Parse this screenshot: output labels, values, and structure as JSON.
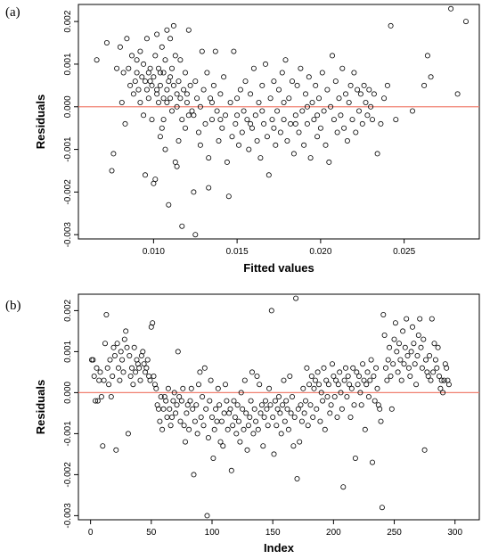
{
  "colors": {
    "reference_line": "#f08070",
    "point_stroke": "#000000"
  },
  "chart_data": [
    {
      "type": "scatter",
      "panel_label": "(a)",
      "xlabel": "Fitted values",
      "ylabel": "Residuals",
      "xlim": [
        0.0055,
        0.0295
      ],
      "ylim": [
        -0.0031,
        0.0024
      ],
      "xticks": [
        0.01,
        0.015,
        0.02,
        0.025
      ],
      "xtick_labels": [
        "0.010",
        "0.015",
        "0.020",
        "0.025"
      ],
      "yticks": [
        -0.003,
        -0.002,
        -0.001,
        0.0,
        0.001,
        0.002
      ],
      "ytick_labels": [
        "-0.003",
        "-0.002",
        "-0.001",
        "0.000",
        "0.001",
        "0.002"
      ],
      "hline": 0,
      "grid": false,
      "points": [
        [
          0.0066,
          0.0011
        ],
        [
          0.0072,
          0.0015
        ],
        [
          0.0075,
          -0.0015
        ],
        [
          0.0076,
          -0.0011
        ],
        [
          0.0078,
          0.0009
        ],
        [
          0.008,
          0.0014
        ],
        [
          0.0081,
          0.0001
        ],
        [
          0.0082,
          0.0008
        ],
        [
          0.0083,
          -0.0004
        ],
        [
          0.0084,
          0.0016
        ],
        [
          0.0085,
          0.0009
        ],
        [
          0.0086,
          0.0005
        ],
        [
          0.0087,
          0.0012
        ],
        [
          0.0088,
          0.0003
        ],
        [
          0.0089,
          0.0006
        ],
        [
          0.009,
          0.0011
        ],
        [
          0.009,
          0.0008
        ],
        [
          0.0091,
          0.0004
        ],
        [
          0.0092,
          0.0013
        ],
        [
          0.0092,
          0.0001
        ],
        [
          0.0093,
          0.0007
        ],
        [
          0.0094,
          -0.0002
        ],
        [
          0.0094,
          0.001
        ],
        [
          0.0095,
          0.0006
        ],
        [
          0.0095,
          -0.0016
        ],
        [
          0.0096,
          0.0016
        ],
        [
          0.0096,
          0.0004
        ],
        [
          0.0097,
          0.0008
        ],
        [
          0.0097,
          0.0002
        ],
        [
          0.0098,
          0.0006
        ],
        [
          0.0098,
          0.0009
        ],
        [
          0.0099,
          -0.0003
        ],
        [
          0.0099,
          0.0005
        ],
        [
          0.01,
          -0.0018
        ],
        [
          0.01,
          0.0007
        ],
        [
          0.0101,
          0.0012
        ],
        [
          0.0101,
          -0.0017
        ],
        [
          0.0102,
          0.0003
        ],
        [
          0.0102,
          0.0017
        ],
        [
          0.0103,
          0.0001
        ],
        [
          0.0103,
          0.0009
        ],
        [
          0.0104,
          -0.0007
        ],
        [
          0.0104,
          0.0005
        ],
        [
          0.0105,
          0.0014
        ],
        [
          0.0105,
          -0.0005
        ],
        [
          0.0106,
          0.0008
        ],
        [
          0.0106,
          0.0002
        ],
        [
          0.0107,
          0.0011
        ],
        [
          0.0107,
          -0.001
        ],
        [
          0.0108,
          0.0018
        ],
        [
          0.0108,
          0.0004
        ],
        [
          0.0109,
          -0.0023
        ],
        [
          0.0109,
          0.0006
        ],
        [
          0.011,
          0.0002
        ],
        [
          0.011,
          0.0016
        ],
        [
          0.0111,
          -0.0001
        ],
        [
          0.0111,
          0.0009
        ],
        [
          0.0112,
          0.0019
        ],
        [
          0.0112,
          0.0005
        ],
        [
          0.0113,
          -0.0013
        ],
        [
          0.0113,
          0.0012
        ],
        [
          0.0114,
          -0.0014
        ],
        [
          0.0114,
          0.0003
        ],
        [
          0.0115,
          0.0006
        ],
        [
          0.0115,
          -0.0008
        ],
        [
          0.0116,
          0.0011
        ],
        [
          0.0117,
          -0.0003
        ],
        [
          0.0117,
          -0.0028
        ],
        [
          0.0118,
          0.0004
        ],
        [
          0.0119,
          -0.0005
        ],
        [
          0.0119,
          0.0008
        ],
        [
          0.012,
          0.0001
        ],
        [
          0.0121,
          -0.0002
        ],
        [
          0.0121,
          0.0018
        ],
        [
          0.0122,
          0.0005
        ],
        [
          0.0123,
          -0.0001
        ],
        [
          0.0124,
          -0.002
        ],
        [
          0.0125,
          -0.003
        ],
        [
          0.0125,
          0.0006
        ],
        [
          0.0126,
          0.0002
        ],
        [
          0.0127,
          -0.0006
        ],
        [
          0.0128,
          -0.0009
        ],
        [
          0.0129,
          0.0013
        ],
        [
          0.013,
          0.0004
        ],
        [
          0.0131,
          -0.0004
        ],
        [
          0.0132,
          0.0008
        ],
        [
          0.0133,
          -0.0019
        ],
        [
          0.0133,
          -0.0012
        ],
        [
          0.0134,
          0.0002
        ],
        [
          0.0135,
          -0.0003
        ],
        [
          0.0136,
          0.0005
        ],
        [
          0.0137,
          0.0013
        ],
        [
          0.0138,
          -0.0001
        ],
        [
          0.0139,
          -0.0008
        ],
        [
          0.014,
          0.0003
        ],
        [
          0.0141,
          -0.0005
        ],
        [
          0.0142,
          0.0007
        ],
        [
          0.0143,
          -0.0002
        ],
        [
          0.0144,
          -0.0013
        ],
        [
          0.0145,
          -0.0021
        ],
        [
          0.0146,
          0.0001
        ],
        [
          0.0147,
          -0.0007
        ],
        [
          0.0148,
          0.0013
        ],
        [
          0.0149,
          -0.0004
        ],
        [
          0.015,
          0.0002
        ],
        [
          0.0151,
          -0.0009
        ],
        [
          0.0152,
          0.0004
        ],
        [
          0.0153,
          -0.0006
        ],
        [
          0.0154,
          -0.0001
        ],
        [
          0.0155,
          0.0006
        ],
        [
          0.0156,
          -0.0003
        ],
        [
          0.0157,
          -0.001
        ],
        [
          0.0158,
          0.0003
        ],
        [
          0.0159,
          -0.0005
        ],
        [
          0.016,
          0.0009
        ],
        [
          0.0161,
          -0.0002
        ],
        [
          0.0162,
          -0.0008
        ],
        [
          0.0163,
          0.0001
        ],
        [
          0.0164,
          -0.0012
        ],
        [
          0.0165,
          0.0005
        ],
        [
          0.0166,
          -0.0004
        ],
        [
          0.0167,
          0.001
        ],
        [
          0.0168,
          -0.0007
        ],
        [
          0.0169,
          -0.0016
        ],
        [
          0.017,
          0.0002
        ],
        [
          0.0171,
          -0.0003
        ],
        [
          0.0172,
          0.0006
        ],
        [
          0.0173,
          -0.0009
        ],
        [
          0.0174,
          -0.0001
        ],
        [
          0.0175,
          0.0004
        ],
        [
          0.0176,
          -0.0006
        ],
        [
          0.0177,
          0.0008
        ],
        [
          0.0178,
          -0.0003
        ],
        [
          0.0179,
          0.0011
        ],
        [
          0.018,
          -0.0008
        ],
        [
          0.0181,
          0.0002
        ],
        [
          0.0182,
          -0.0004
        ],
        [
          0.0183,
          0.0006
        ],
        [
          0.0184,
          -0.0011
        ],
        [
          0.0185,
          -0.0002
        ],
        [
          0.0186,
          0.0005
        ],
        [
          0.0187,
          -0.0006
        ],
        [
          0.0188,
          0.0009
        ],
        [
          0.0189,
          -0.0001
        ],
        [
          0.019,
          -0.0009
        ],
        [
          0.0191,
          0.0003
        ],
        [
          0.0192,
          -0.0004
        ],
        [
          0.0193,
          0.0007
        ],
        [
          0.0194,
          -0.0012
        ],
        [
          0.0195,
          0.0001
        ],
        [
          0.0196,
          -0.0003
        ],
        [
          0.0197,
          0.0005
        ],
        [
          0.0198,
          -0.0007
        ],
        [
          0.0199,
          0.0002
        ],
        [
          0.02,
          -0.0005
        ],
        [
          0.0201,
          0.0008
        ],
        [
          0.0202,
          -0.0001
        ],
        [
          0.0203,
          -0.0009
        ],
        [
          0.0204,
          0.0004
        ],
        [
          0.0205,
          -0.0013
        ],
        [
          0.0206,
          0.0
        ],
        [
          0.0207,
          0.0012
        ],
        [
          0.0208,
          -0.0003
        ],
        [
          0.0209,
          0.0006
        ],
        [
          0.021,
          -0.0006
        ],
        [
          0.0211,
          0.0002
        ],
        [
          0.0212,
          -0.0002
        ],
        [
          0.0213,
          0.0009
        ],
        [
          0.0214,
          -0.0005
        ],
        [
          0.0215,
          0.0003
        ],
        [
          0.0216,
          -0.0008
        ],
        [
          0.0217,
          0.0001
        ],
        [
          0.0218,
          0.0005
        ],
        [
          0.0219,
          -0.0003
        ],
        [
          0.022,
          0.0008
        ],
        [
          0.0221,
          -0.0006
        ],
        [
          0.0222,
          0.0004
        ],
        [
          0.0223,
          -0.0001
        ],
        [
          0.0224,
          0.0003
        ],
        [
          0.0225,
          -0.0004
        ],
        [
          0.0226,
          0.0005
        ],
        [
          0.0227,
          0.0001
        ],
        [
          0.0228,
          -0.0002
        ],
        [
          0.0229,
          0.0004
        ],
        [
          0.023,
          0.0
        ],
        [
          0.0231,
          -0.0003
        ],
        [
          0.0232,
          0.0003
        ],
        [
          0.0234,
          -0.0011
        ],
        [
          0.0236,
          -0.0004
        ],
        [
          0.0238,
          0.0002
        ],
        [
          0.024,
          0.0005
        ],
        [
          0.0242,
          0.0019
        ],
        [
          0.0245,
          -0.0003
        ],
        [
          0.0255,
          -0.0001
        ],
        [
          0.0262,
          0.0005
        ],
        [
          0.0264,
          0.0012
        ],
        [
          0.0266,
          0.0007
        ],
        [
          0.0278,
          0.0023
        ],
        [
          0.0282,
          0.0003
        ],
        [
          0.0287,
          0.002
        ],
        [
          0.0102,
          0.0004
        ],
        [
          0.0104,
          0.0008
        ],
        [
          0.0106,
          -0.0003
        ],
        [
          0.0108,
          0.0001
        ],
        [
          0.011,
          0.0007
        ],
        [
          0.0114,
          0.0
        ],
        [
          0.0116,
          0.0002
        ],
        [
          0.012,
          0.0003
        ],
        [
          0.0124,
          -0.0002
        ],
        [
          0.0128,
          0.0
        ],
        [
          0.0135,
          0.0001
        ],
        [
          0.014,
          -0.0003
        ],
        [
          0.015,
          -0.0002
        ],
        [
          0.0158,
          -0.0004
        ],
        [
          0.0165,
          -0.0001
        ],
        [
          0.0172,
          -0.0005
        ],
        [
          0.0178,
          0.0001
        ],
        [
          0.0185,
          -0.0004
        ],
        [
          0.0192,
          0.0
        ],
        [
          0.0198,
          -0.0002
        ]
      ]
    },
    {
      "type": "scatter",
      "panel_label": "(b)",
      "xlabel": "Index",
      "ylabel": "Residuals",
      "xlim": [
        -10,
        320
      ],
      "ylim": [
        -0.0031,
        0.0024
      ],
      "xticks": [
        0,
        50,
        100,
        150,
        200,
        250,
        300
      ],
      "xtick_labels": [
        "0",
        "50",
        "100",
        "150",
        "200",
        "250",
        "300"
      ],
      "yticks": [
        -0.003,
        -0.002,
        -0.001,
        0.0,
        0.001,
        0.002
      ],
      "ytick_labels": [
        "-0.003",
        "-0.002",
        "-0.001",
        "0.000",
        "0.001",
        "0.002"
      ],
      "hline": 0,
      "grid": false,
      "residuals": [
        0.0008,
        0.0008,
        0.0004,
        -0.0002,
        0.0006,
        -0.0002,
        0.0003,
        0.0005,
        -0.0001,
        -0.0013,
        0.0003,
        0.0012,
        0.0019,
        0.0006,
        0.0002,
        0.0008,
        -0.0001,
        0.0004,
        0.0011,
        0.0009,
        -0.0014,
        0.0012,
        0.0006,
        0.0003,
        0.001,
        0.0008,
        0.0005,
        0.0013,
        0.0015,
        0.0011,
        -0.001,
        0.0009,
        0.0004,
        0.0006,
        0.0002,
        0.0011,
        0.0005,
        0.0008,
        0.0007,
        0.0006,
        0.0003,
        0.0009,
        0.001,
        0.0007,
        0.0005,
        0.0006,
        0.0008,
        0.0004,
        0.0003,
        0.0016,
        0.0017,
        0.0004,
        0.0002,
        0.0001,
        -0.0003,
        -0.0004,
        -0.0007,
        -0.0001,
        -0.0009,
        -0.0004,
        -0.0001,
        -0.0002,
        -0.0006,
        0.0001,
        -0.0004,
        -0.0008,
        -0.0006,
        -0.0002,
        0.0,
        -0.0005,
        -0.0003,
        0.001,
        -0.0001,
        -0.0007,
        -0.0002,
        0.0001,
        -0.0008,
        -0.0012,
        -0.0005,
        -0.0003,
        -0.0009,
        -0.0002,
        0.0001,
        -0.0004,
        -0.002,
        -0.0007,
        -0.0003,
        -0.001,
        0.0002,
        0.0005,
        -0.0006,
        -0.0001,
        -0.0008,
        0.0006,
        -0.0004,
        -0.003,
        -0.0011,
        -0.0002,
        0.0003,
        -0.0006,
        -0.0016,
        -0.0009,
        -0.0004,
        -0.0007,
        0.0001,
        -0.0003,
        -0.0012,
        -0.0007,
        -0.0013,
        -0.0005,
        0.0002,
        -0.0002,
        -0.0009,
        -0.0005,
        -0.0004,
        -0.0019,
        -0.0008,
        -0.0002,
        -0.0006,
        -0.001,
        -0.0003,
        -0.0007,
        -0.0012,
        0.0,
        -0.0004,
        -0.0009,
        0.0003,
        -0.0005,
        -0.0014,
        -0.0008,
        -0.0006,
        -0.0002,
        0.0005,
        -0.001,
        -0.0004,
        -0.0007,
        0.0004,
        -0.0009,
        0.0002,
        -0.0005,
        -0.0003,
        -0.0013,
        -0.0006,
        -0.0002,
        -0.0004,
        -0.0008,
        0.0001,
        -0.0003,
        0.002,
        -0.0006,
        -0.0015,
        -0.0002,
        -0.0008,
        -0.0004,
        -0.0001,
        -0.0005,
        -0.001,
        -0.0003,
        0.0003,
        -0.0007,
        -0.0002,
        -0.0004,
        -0.0009,
        0.0004,
        -0.0005,
        -0.0001,
        -0.0013,
        -0.0006,
        0.0023,
        -0.0021,
        -0.0004,
        -0.0012,
        -0.0003,
        -0.0007,
        0.0001,
        -0.0005,
        -0.0002,
        0.0006,
        -0.0008,
        0.0002,
        -0.0003,
        0.0004,
        -0.0006,
        0.0001,
        0.0003,
        -0.0004,
        0.0005,
        0.0002,
        -0.0007,
        0.0,
        -0.0002,
        0.0006,
        -0.0009,
        0.0003,
        -0.0001,
        0.0002,
        -0.0005,
        -0.0003,
        0.0007,
        0.0004,
        -0.0001,
        0.0003,
        -0.0006,
        0.0002,
        0.0005,
        0.0,
        -0.0004,
        -0.0023,
        0.0003,
        0.0006,
        -0.0001,
        0.0004,
        0.0002,
        -0.0006,
        0.0001,
        0.0006,
        -0.0003,
        -0.0016,
        0.0005,
        0.0002,
        0.0004,
        0.0,
        -0.0003,
        0.0007,
        0.0003,
        -0.0009,
        0.0002,
        0.0005,
        -0.0001,
        0.0003,
        0.0008,
        -0.0017,
        0.0004,
        -0.0002,
        0.0006,
        0.0001,
        -0.0003,
        -0.0004,
        -0.0007,
        -0.0028,
        0.0019,
        0.0014,
        0.0006,
        0.0003,
        0.0008,
        0.0011,
        0.0004,
        -0.0004,
        0.0007,
        0.0013,
        0.0017,
        0.001,
        0.0005,
        0.0012,
        0.0008,
        0.0003,
        0.0015,
        0.0007,
        0.0011,
        0.0018,
        0.0009,
        0.0006,
        0.0004,
        0.001,
        0.0016,
        0.0012,
        0.0007,
        0.0002,
        0.0009,
        0.0014,
        0.0018,
        0.0011,
        0.0006,
        0.0013,
        -0.0014,
        0.0008,
        0.0005,
        0.0004,
        0.0009,
        0.0003,
        0.0018,
        0.0005,
        0.0012,
        0.0008,
        0.0006,
        0.0011,
        0.0004,
        0.0001,
        0.0003,
        0.0,
        0.0003,
        0.0007,
        0.0006,
        0.0003,
        0.0002
      ]
    }
  ]
}
